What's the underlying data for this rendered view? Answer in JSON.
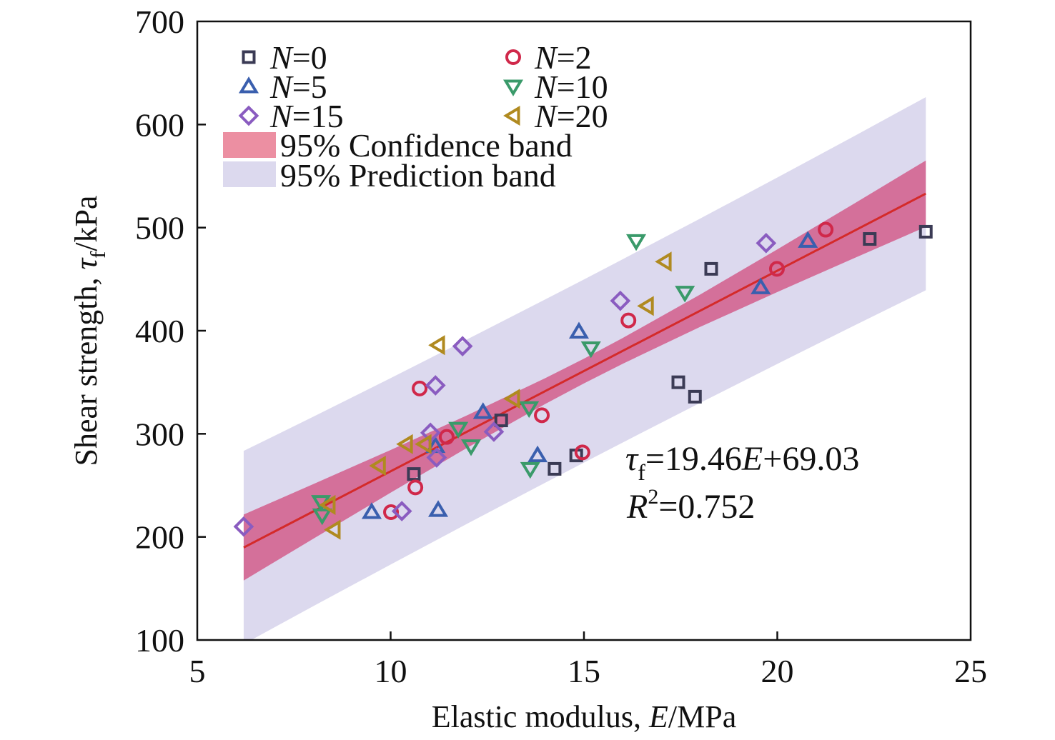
{
  "chart_data": {
    "type": "scatter",
    "xlabel_prefix": "Elastic modulus, ",
    "xlabel_var": "E",
    "xlabel_unit": "/MPa",
    "ylabel_prefix": "Shear strength, ",
    "ylabel_var": "τ",
    "ylabel_sub": "f",
    "ylabel_unit": "/kPa",
    "xlim": [
      5,
      25
    ],
    "ylim": [
      100,
      700
    ],
    "xticks": [
      5,
      10,
      15,
      20,
      25
    ],
    "yticks": [
      100,
      200,
      300,
      400,
      500,
      600,
      700
    ],
    "grid": false,
    "legend_placement": "top-left",
    "series": [
      {
        "name": "N=0",
        "var": "N",
        "eq": "=0",
        "marker": "square",
        "color": "#3b3b55",
        "x": [
          10.6,
          12.86,
          14.24,
          14.8,
          17.44,
          17.87,
          18.29,
          22.39,
          23.84
        ],
        "y": [
          261,
          313,
          266,
          279,
          350,
          336,
          460,
          489,
          496
        ]
      },
      {
        "name": "N=2",
        "var": "N",
        "eq": "=2",
        "marker": "circle",
        "color": "#d0284a",
        "x": [
          10.75,
          10.64,
          10.01,
          11.45,
          13.91,
          14.96,
          16.15,
          19.99,
          21.25
        ],
        "y": [
          344,
          248,
          224,
          297,
          318,
          282,
          410,
          460,
          498
        ]
      },
      {
        "name": "N=5",
        "var": "N",
        "eq": "=5",
        "marker": "triangle-up",
        "color": "#3a5fae",
        "x": [
          9.51,
          11.23,
          11.16,
          12.39,
          13.8,
          14.87,
          19.57,
          20.79
        ],
        "y": [
          224,
          226,
          288,
          321,
          279,
          399,
          442,
          487
        ]
      },
      {
        "name": "N=10",
        "var": "N",
        "eq": "=10",
        "marker": "triangle-down",
        "color": "#3a9a6a",
        "x": [
          8.2,
          8.23,
          11.75,
          12.08,
          13.58,
          13.61,
          15.18,
          16.35,
          17.61
        ],
        "y": [
          234,
          221,
          305,
          288,
          325,
          266,
          383,
          487,
          437
        ]
      },
      {
        "name": "N=15",
        "var": "N",
        "eq": "=15",
        "marker": "diamond",
        "color": "#8a5cc0",
        "x": [
          6.2,
          10.29,
          11.03,
          11.19,
          11.16,
          11.86,
          12.67,
          15.94,
          19.71
        ],
        "y": [
          210,
          225,
          301,
          277,
          347,
          385,
          302,
          429,
          485
        ]
      },
      {
        "name": "N=20",
        "var": "N",
        "eq": "=20",
        "marker": "triangle-left",
        "color": "#b08a20",
        "x": [
          11.23,
          10.4,
          10.88,
          9.7,
          8.4,
          8.53,
          13.17,
          16.63,
          17.09
        ],
        "y": [
          386,
          290,
          290,
          269,
          231,
          207,
          334,
          424,
          467
        ]
      }
    ],
    "fit": {
      "slope": 19.46,
      "intercept": 69.03,
      "x_range": [
        6.2,
        23.84
      ],
      "color": "#d42a2a"
    },
    "bands": {
      "x": [
        6.2,
        8,
        10,
        12,
        14,
        15,
        16,
        18,
        20,
        22,
        23.84
      ],
      "conf_lower": [
        157.7,
        198.2,
        242.9,
        286.9,
        329.0,
        348.9,
        367.9,
        403.6,
        437.5,
        470.6,
        500.7
      ],
      "conf_upper": [
        221.7,
        251.2,
        284.3,
        318.3,
        354.0,
        372.9,
        392.9,
        435.0,
        478.9,
        523.6,
        565.1
      ],
      "pred_lower": [
        96.0,
        132.8,
        173.2,
        213.2,
        252.6,
        272.1,
        291.5,
        329.9,
        367.8,
        405.2,
        439.2
      ],
      "pred_upper": [
        283.4,
        316.6,
        354.0,
        392.0,
        430.4,
        449.7,
        469.3,
        508.7,
        548.6,
        589.0,
        626.6
      ],
      "conf_color": "#d4709a",
      "conf_legend_color": "#ec8fa2",
      "pred_color": "#dcd9ee",
      "conf_label": "95% Confidence band",
      "pred_label": "95% Prediction band"
    },
    "annotations": {
      "eq_var": "τ",
      "eq_sub": "f",
      "eq_mid": "=19.46",
      "eq_var2": "E",
      "eq_tail": "+69.03",
      "r2_var": "R",
      "r2_sup": "2",
      "r2_tail": "=0.752"
    }
  }
}
